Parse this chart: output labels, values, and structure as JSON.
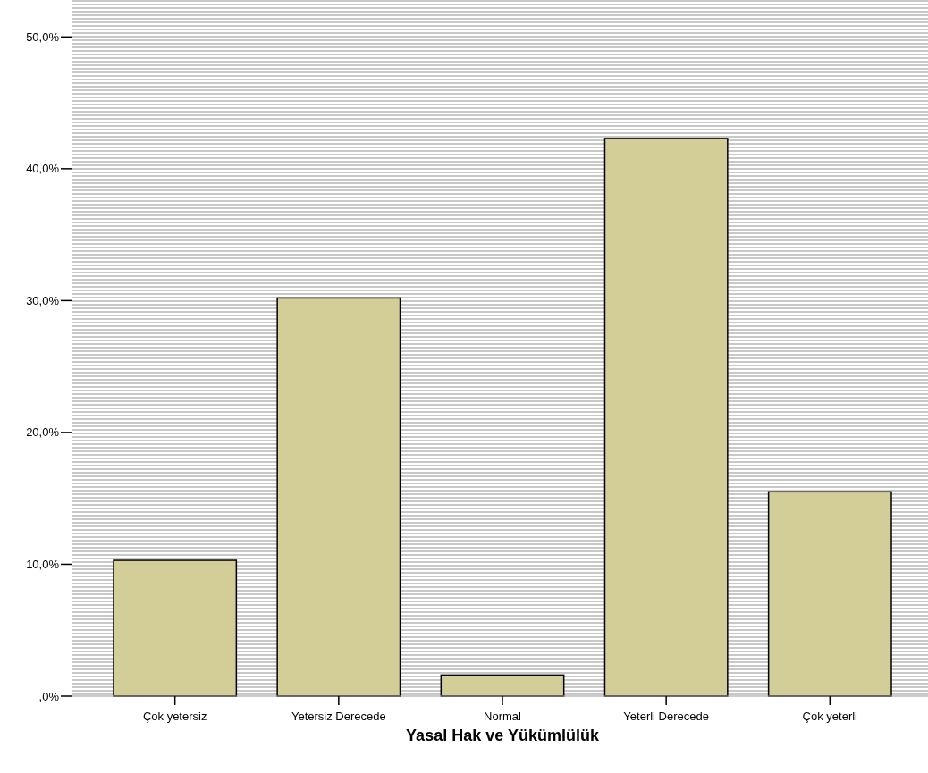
{
  "chart_data": {
    "type": "bar",
    "xlabel": "Yasal Hak ve Yükümlülük",
    "categories": [
      "Çok yetersiz",
      "Yetersiz Derecede",
      "Normal",
      "Yeterli Derecede",
      "Çok yeterli"
    ],
    "values": [
      10.3,
      30.2,
      1.6,
      42.3,
      15.5
    ],
    "color": "#d3ce98",
    "ylim": [
      0,
      52.8
    ],
    "yticks": [
      {
        "value": 0,
        "label": ",0%"
      },
      {
        "value": 10,
        "label": "10,0%"
      },
      {
        "value": 20,
        "label": "20,0%"
      },
      {
        "value": 30,
        "label": "30,0%"
      },
      {
        "value": 40,
        "label": "40,0%"
      },
      {
        "value": 50,
        "label": "50,0%"
      }
    ]
  }
}
